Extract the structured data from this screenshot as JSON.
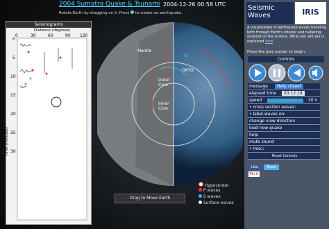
{
  "header": {
    "title": "2004 Sumatra Quake & Tsunami",
    "datetime": "2004-12-26  00:58 UTC",
    "instruction": "Rotate Earth by dragging on it. Press",
    "instruction_end": "to create an earthquake."
  },
  "seismograms": {
    "title": "Seismograms",
    "x_label": "Distance (degrees)",
    "x_ticks": [
      0,
      30,
      60,
      90,
      120
    ],
    "y_label": "Time (minutes)",
    "y_ticks": [
      0,
      5,
      10,
      15,
      20,
      25,
      30
    ]
  },
  "globe": {
    "labels": [
      "Mantle",
      "Outer Core",
      "Inner Core",
      "OKTO"
    ],
    "button": "Drag to Move Earth"
  },
  "legend": [
    "Hypocenter",
    "P waves",
    "S waves",
    "Surface waves"
  ],
  "sidebar": {
    "title": "Seismic Waves",
    "logo": "IRIS",
    "description": "A visualization of earthquake waves traveling both through Earth's interior and radiating outward on the surface. What you will see is explained",
    "link": "here",
    "prompt": "Press the play button to begin.",
    "controls": {
      "title": "Controls",
      "message_label": "message",
      "message": "Help closed",
      "elapsed_label": "elapsed time",
      "elapsed": "00:12:18",
      "speed_label": "speed",
      "speed": "30 x",
      "items": [
        "• cross section waves:",
        "• label waves on:",
        "change view direction",
        "load new quake",
        "help",
        "mute sound",
        "• misc:"
      ],
      "reset": "Reset Controls"
    },
    "social": [
      "Like",
      "Tweet",
      "Pin it"
    ]
  }
}
